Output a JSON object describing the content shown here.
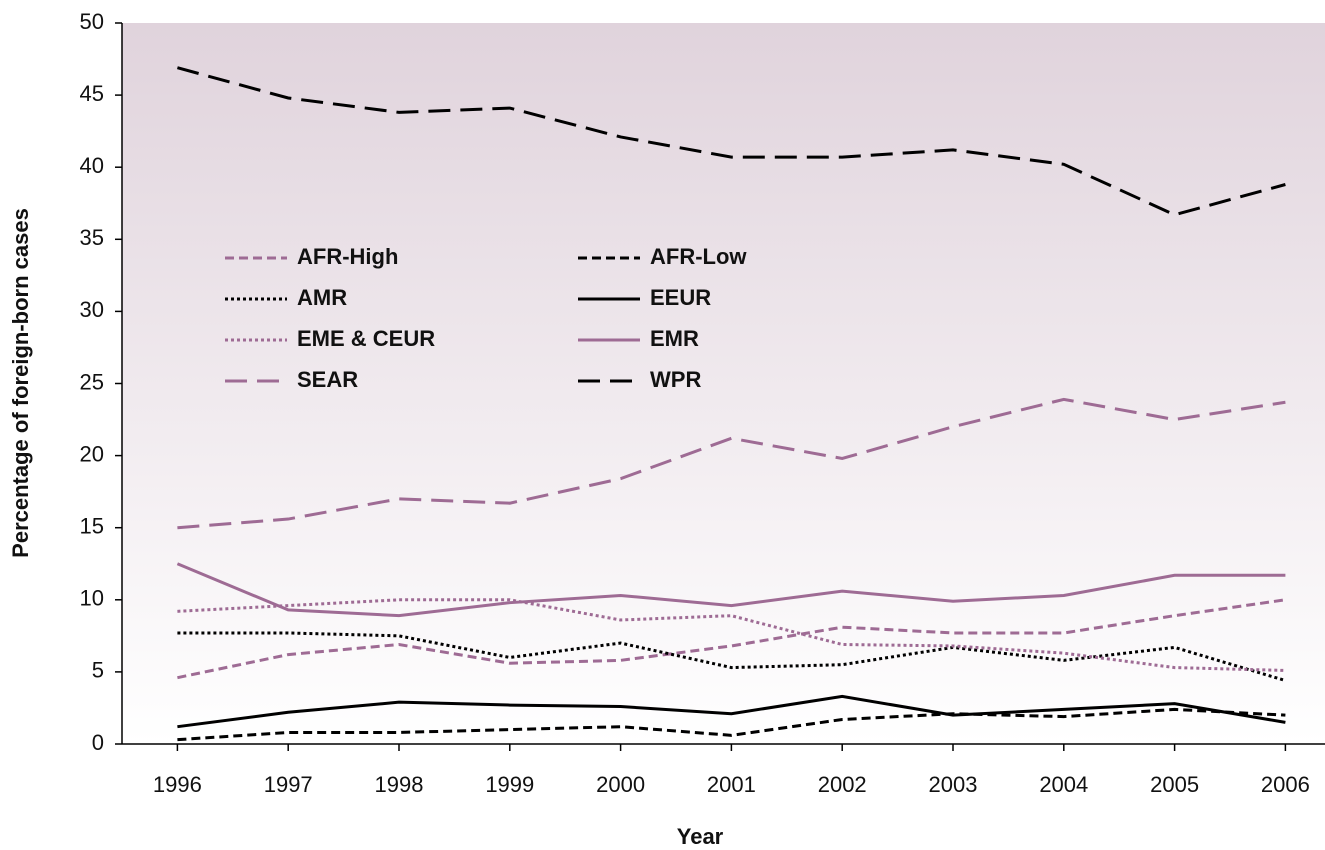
{
  "chart_data": {
    "type": "line",
    "xlabel": "Year",
    "ylabel": "Percentage of foreign-born cases",
    "categories": [
      "1996",
      "1997",
      "1998",
      "1999",
      "2000",
      "2001",
      "2002",
      "2003",
      "2004",
      "2005",
      "2006"
    ],
    "ylim": [
      0,
      50
    ],
    "yticks": [
      0,
      5,
      10,
      15,
      20,
      25,
      30,
      35,
      40,
      45,
      50
    ],
    "series": [
      {
        "name": "AFR-High",
        "color": "#9e6b94",
        "dash": "short-dash",
        "values": [
          4.6,
          6.2,
          6.9,
          5.6,
          5.8,
          6.8,
          8.1,
          7.7,
          7.7,
          8.9,
          10.0
        ]
      },
      {
        "name": "AFR-Low",
        "color": "#000000",
        "dash": "short-dash",
        "values": [
          0.3,
          0.8,
          0.8,
          1.0,
          1.2,
          0.6,
          1.7,
          2.1,
          1.9,
          2.4,
          2.0
        ]
      },
      {
        "name": "AMR",
        "color": "#000000",
        "dash": "dotted",
        "values": [
          7.7,
          7.7,
          7.5,
          6.0,
          7.0,
          5.3,
          5.5,
          6.7,
          5.8,
          6.7,
          4.4
        ]
      },
      {
        "name": "EEUR",
        "color": "#000000",
        "dash": "solid",
        "values": [
          1.2,
          2.2,
          2.9,
          2.7,
          2.6,
          2.1,
          3.3,
          2.0,
          2.4,
          2.8,
          1.5
        ]
      },
      {
        "name": "EME & CEUR",
        "color": "#9e6b94",
        "dash": "dotted",
        "values": [
          9.2,
          9.6,
          10.0,
          10.0,
          8.6,
          8.9,
          6.9,
          6.8,
          6.3,
          5.3,
          5.1
        ]
      },
      {
        "name": "EMR",
        "color": "#9e6b94",
        "dash": "solid",
        "values": [
          12.5,
          9.3,
          8.9,
          9.8,
          10.3,
          9.6,
          10.6,
          9.9,
          10.3,
          11.7,
          11.7
        ]
      },
      {
        "name": "SEAR",
        "color": "#9e6b94",
        "dash": "long-dash",
        "values": [
          15.0,
          15.6,
          17.0,
          16.7,
          18.4,
          21.2,
          19.8,
          22.0,
          23.9,
          22.5,
          23.7
        ]
      },
      {
        "name": "WPR",
        "color": "#000000",
        "dash": "long-dash",
        "values": [
          46.9,
          44.8,
          43.8,
          44.1,
          42.1,
          40.7,
          40.7,
          41.2,
          40.2,
          36.7,
          38.8
        ]
      }
    ]
  }
}
